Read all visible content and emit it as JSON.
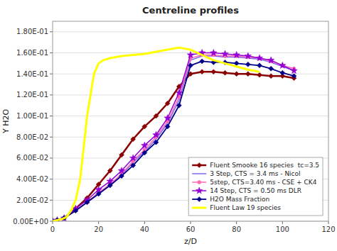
{
  "chart_data": {
    "type": "line",
    "title": "Centreline profiles",
    "x_label": "z/D",
    "y_label": "Y H2O",
    "xlim": [
      0,
      120
    ],
    "ylim": [
      0.0,
      0.19
    ],
    "xticks": [
      0,
      20,
      40,
      60,
      80,
      100,
      120
    ],
    "yticks": [
      {
        "value": 0.0,
        "label": "0.00E+00"
      },
      {
        "value": 0.02,
        "label": "2.00E-02"
      },
      {
        "value": 0.04,
        "label": "4.00E-02"
      },
      {
        "value": 0.06,
        "label": "6.00E-02"
      },
      {
        "value": 0.08,
        "label": "8.00E-02"
      },
      {
        "value": 0.1,
        "label": "1.00E-01"
      },
      {
        "value": 0.12,
        "label": "1.20E-01"
      },
      {
        "value": 0.14,
        "label": "1.40E-01"
      },
      {
        "value": 0.16,
        "label": "1.60E-01"
      },
      {
        "value": 0.18,
        "label": "1.80E-01"
      }
    ],
    "grid": "y",
    "legend": "lower right",
    "series": [
      {
        "name": "Fluent Smooke 16 species  tc=3.5",
        "color": "#8B0000",
        "marker": "diamond",
        "line_style": "solid",
        "x": [
          0,
          2,
          5,
          10,
          15,
          20,
          25,
          30,
          35,
          40,
          45,
          50,
          55,
          60,
          65,
          70,
          75,
          80,
          85,
          90,
          95,
          100,
          105
        ],
        "values": [
          0.0,
          0.001,
          0.003,
          0.012,
          0.022,
          0.035,
          0.048,
          0.063,
          0.078,
          0.09,
          0.1,
          0.112,
          0.128,
          0.14,
          0.142,
          0.142,
          0.141,
          0.14,
          0.14,
          0.139,
          0.138,
          0.138,
          0.136
        ]
      },
      {
        "name": "3 Step, CTS = 3.4 ms - Nicol",
        "color": "#7B68EE",
        "marker": "none",
        "line_style": "solid",
        "x": [
          0,
          2,
          5,
          10,
          15,
          20,
          25,
          30,
          35,
          40,
          45,
          50,
          55,
          60,
          65,
          70,
          75,
          80,
          85,
          90,
          95,
          100,
          105
        ],
        "values": [
          0.0,
          0.001,
          0.003,
          0.01,
          0.018,
          0.027,
          0.035,
          0.044,
          0.056,
          0.066,
          0.078,
          0.093,
          0.115,
          0.153,
          0.157,
          0.157,
          0.156,
          0.156,
          0.155,
          0.154,
          0.151,
          0.147,
          0.143
        ]
      },
      {
        "name": "5step, CTS=3.40 ms - CSE + CK4",
        "color": "#FF69B4",
        "marker": "circle",
        "line_style": "solid",
        "x": [
          0,
          2,
          5,
          10,
          15,
          20,
          25,
          30,
          35,
          40,
          45,
          50,
          55,
          60,
          65,
          70,
          75,
          80,
          85,
          90,
          95,
          100,
          105
        ],
        "values": [
          0.0,
          0.001,
          0.003,
          0.01,
          0.018,
          0.027,
          0.035,
          0.045,
          0.057,
          0.068,
          0.08,
          0.095,
          0.118,
          0.155,
          0.158,
          0.158,
          0.157,
          0.157,
          0.156,
          0.155,
          0.152,
          0.148,
          0.145
        ]
      },
      {
        "name": "14 Step, CTS = 0.50 ms DLR",
        "color": "#9400D3",
        "marker": "star",
        "line_style": "solid",
        "x": [
          0,
          2,
          5,
          10,
          15,
          20,
          25,
          30,
          35,
          40,
          45,
          50,
          55,
          60,
          65,
          70,
          75,
          80,
          85,
          90,
          95,
          100,
          105
        ],
        "values": [
          0.0,
          0.001,
          0.003,
          0.012,
          0.02,
          0.03,
          0.038,
          0.048,
          0.06,
          0.072,
          0.082,
          0.098,
          0.122,
          0.158,
          0.16,
          0.16,
          0.159,
          0.158,
          0.157,
          0.155,
          0.153,
          0.148,
          0.143
        ]
      },
      {
        "name": "H2O Mass Fraction",
        "color": "#00008B",
        "marker": "diamond",
        "line_style": "solid",
        "x": [
          0,
          2,
          5,
          10,
          15,
          20,
          25,
          30,
          35,
          40,
          45,
          50,
          55,
          60,
          65,
          70,
          75,
          80,
          85,
          90,
          95,
          100,
          105
        ],
        "values": [
          0.0,
          0.001,
          0.003,
          0.01,
          0.018,
          0.026,
          0.034,
          0.043,
          0.053,
          0.065,
          0.075,
          0.09,
          0.11,
          0.148,
          0.152,
          0.151,
          0.151,
          0.15,
          0.149,
          0.148,
          0.145,
          0.141,
          0.138
        ]
      },
      {
        "name": "Fluent Law 19 species",
        "color": "#FFFF00",
        "marker": "none",
        "line_style": "solid",
        "x": [
          0,
          2,
          4,
          6,
          8,
          10,
          12,
          15,
          18,
          20,
          22,
          25,
          30,
          35,
          40,
          45,
          50,
          55,
          60,
          65,
          70,
          75,
          80,
          85,
          90
        ],
        "values": [
          0.0,
          0.001,
          0.002,
          0.004,
          0.01,
          0.02,
          0.04,
          0.1,
          0.14,
          0.15,
          0.153,
          0.155,
          0.157,
          0.158,
          0.159,
          0.161,
          0.163,
          0.165,
          0.163,
          0.158,
          0.153,
          0.15,
          0.147,
          0.144,
          0.142
        ]
      }
    ]
  }
}
